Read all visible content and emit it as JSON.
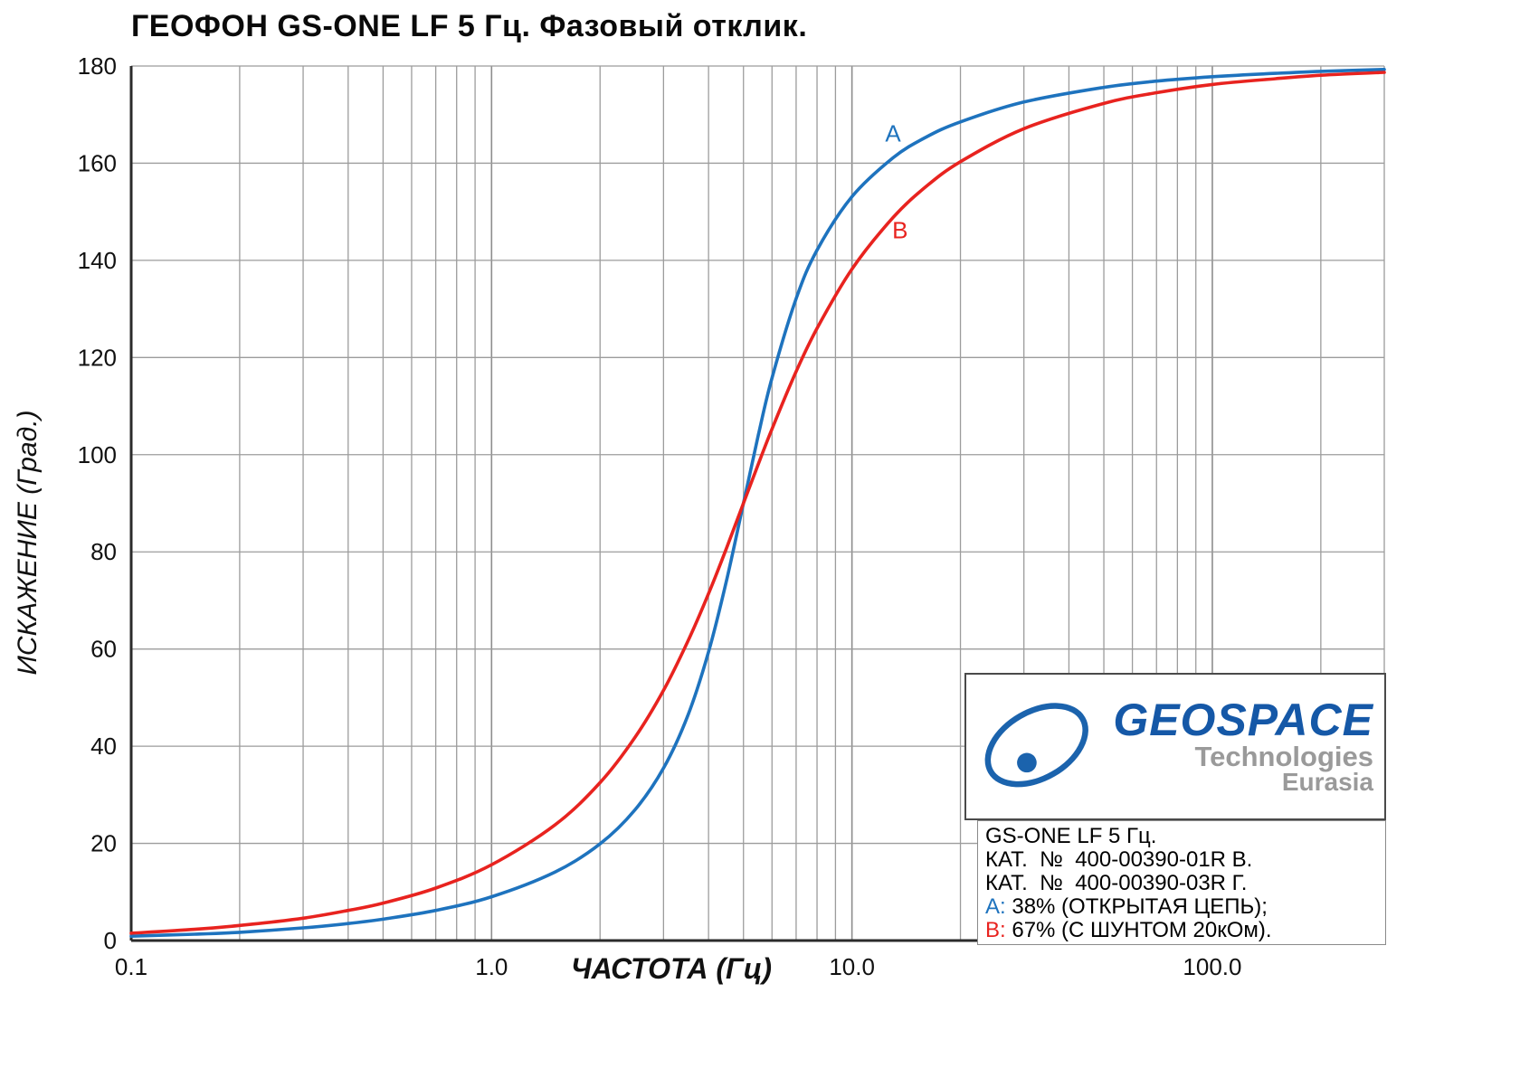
{
  "title": "ГЕОФОН GS-ONE LF 5 Гц. Фазовый отклик.",
  "chart_data": {
    "type": "line",
    "title": "ГЕОФОН GS-ONE LF 5 Гц. Фазовый отклик.",
    "xlabel": "ЧАСТОТА (Гц)",
    "ylabel": "ИСКАЖЕНИЕ (Град.)",
    "x_scale": "log",
    "grid_on": true,
    "legend_position": "bottom-right",
    "xlim": [
      0.1,
      300
    ],
    "ylim": [
      0,
      180
    ],
    "x_ticks": [
      {
        "value": 0.1,
        "label": "0.1"
      },
      {
        "value": 1,
        "label": "1.0"
      },
      {
        "value": 10,
        "label": "10.0"
      },
      {
        "value": 100,
        "label": "100.0"
      }
    ],
    "y_ticks": [
      {
        "value": 180,
        "label": "180"
      },
      {
        "value": 160,
        "label": "160"
      },
      {
        "value": 140,
        "label": "140"
      },
      {
        "value": 120,
        "label": "120"
      },
      {
        "value": 100,
        "label": "100"
      },
      {
        "value": 80,
        "label": "80"
      },
      {
        "value": 60,
        "label": "60"
      },
      {
        "value": 40,
        "label": "40"
      },
      {
        "value": 20,
        "label": "20"
      },
      {
        "value": 0,
        "label": "0"
      }
    ],
    "grid": {
      "x": [
        0.2,
        0.3,
        0.4,
        0.5,
        0.6,
        0.7,
        0.8,
        0.9,
        1,
        2,
        3,
        4,
        5,
        6,
        7,
        8,
        9,
        10,
        20,
        30,
        40,
        50,
        60,
        70,
        80,
        90,
        100,
        200,
        300
      ],
      "y": [
        20,
        40,
        60,
        80,
        100,
        120,
        140,
        160,
        180
      ]
    },
    "x": [
      0.1,
      0.15,
      0.2,
      0.3,
      0.4,
      0.5,
      0.7,
      1,
      1.5,
      2,
      2.5,
      3,
      3.5,
      4,
      4.5,
      5,
      5.5,
      6,
      7,
      8,
      10,
      13,
      16,
      20,
      30,
      50,
      70,
      100,
      150,
      200,
      300
    ],
    "series": [
      {
        "name": "A",
        "color": "#1e73be",
        "description": "38% (ОТКРЫТАЯ ЦЕПЬ)",
        "label": {
          "f": 13,
          "v": 164.5
        },
        "y": [
          0.9,
          1.3,
          1.7,
          2.6,
          3.5,
          4.4,
          6.2,
          9.0,
          14.1,
          19.9,
          26.9,
          35.5,
          46.2,
          59.4,
          74.5,
          90,
          104.1,
          115.8,
          132.1,
          142.1,
          153.1,
          161.1,
          165.3,
          168.5,
          172.6,
          175.6,
          176.9,
          177.8,
          178.5,
          178.9,
          179.3
        ]
      },
      {
        "name": "B",
        "color": "#e8231f",
        "description": "67% (С ШУНТОМ 20кОм)",
        "label": {
          "f": 13.6,
          "v": 144.5
        },
        "y": [
          1.5,
          2.3,
          3.1,
          4.6,
          6.2,
          7.7,
          10.8,
          15.6,
          23.8,
          32.5,
          41.8,
          51.5,
          61.5,
          71.4,
          81.0,
          90,
          98.1,
          105.3,
          117.1,
          126.0,
          138.2,
          148.8,
          155.1,
          160.3,
          167.1,
          172.3,
          174.5,
          176.2,
          177.4,
          178.1,
          178.7
        ]
      }
    ]
  },
  "logo": {
    "name": "GEOSPACE",
    "sub1": "Technologies",
    "sub2": "Eurasia"
  },
  "legend": {
    "lines": [
      {
        "prefix": "",
        "text": "GS-ONE LF 5 Гц."
      },
      {
        "prefix": "",
        "text": "КАТ.  №  400-00390-01R В."
      },
      {
        "prefix": "",
        "text": "КАТ.  №  400-00390-03R Г."
      },
      {
        "prefix": "A:",
        "text": " 38% (ОТКРЫТАЯ ЦЕПЬ);"
      },
      {
        "prefix": "B:",
        "text": " 67% (С ШУНТОМ 20кОм)."
      }
    ]
  }
}
